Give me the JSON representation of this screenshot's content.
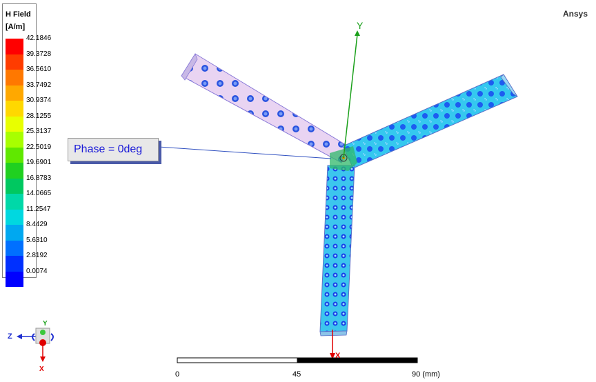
{
  "legend": {
    "title": "H Field",
    "unit": "[A/m]",
    "values": [
      "42.1846",
      "39.3728",
      "36.5610",
      "33.7492",
      "30.9374",
      "28.1255",
      "25.3137",
      "22.5019",
      "19.6901",
      "16.8783",
      "14.0665",
      "11.2547",
      "8.4429",
      "5.6310",
      "2.8192",
      "0.0074"
    ],
    "colors": [
      "#ff0000",
      "#ff3c00",
      "#ff7800",
      "#ffa800",
      "#ffd800",
      "#e8ff00",
      "#a8ff00",
      "#60e800",
      "#20d020",
      "#00c860",
      "#00d8a8",
      "#00d8e0",
      "#00a8f0",
      "#0070ff",
      "#0030ff",
      "#0000ff"
    ]
  },
  "brand": "Ansys",
  "phase_label": "Phase = 0deg",
  "axes": {
    "y": "Y",
    "x": "X",
    "z": "Z"
  },
  "scale": {
    "tick0": "0",
    "tick1": "45",
    "tick2": "90 (mm)"
  }
}
